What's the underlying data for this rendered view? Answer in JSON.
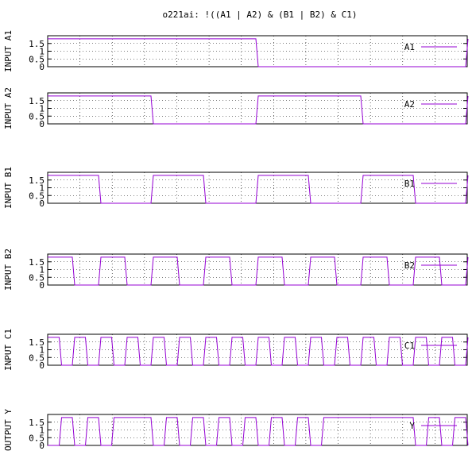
{
  "title": "o221ai: !((A1 | A2) & (B1 | B2) & C1)",
  "colors": {
    "signal": "#9400D3",
    "axis": "#000000",
    "grid": "#000000",
    "background": "#ffffff"
  },
  "chart_data": {
    "type": "line",
    "x": [
      0,
      1,
      2,
      3,
      4,
      5,
      6,
      7,
      8,
      9,
      10,
      11,
      12,
      13,
      14,
      15,
      16,
      17,
      18,
      19,
      20,
      21,
      22,
      23,
      24,
      25,
      26,
      27,
      28,
      29,
      30,
      31,
      32,
      33,
      34,
      35,
      36,
      37,
      38,
      39,
      40,
      41,
      42,
      43,
      44,
      45,
      46,
      47,
      48,
      49,
      50,
      51,
      52,
      53,
      54,
      55,
      56,
      57,
      58,
      59,
      60,
      61,
      62,
      63,
      64
    ],
    "xlim": [
      0,
      64
    ],
    "ylim": [
      0,
      2
    ],
    "yticks": [
      "0",
      "0.5",
      "1",
      "1.5"
    ],
    "grid": true,
    "legend_position": "top-right",
    "panels": [
      {
        "ylabel": "INPUT A1",
        "series": [
          {
            "name": "A1",
            "values": [
              1.8,
              1.8,
              1.8,
              1.8,
              1.8,
              1.8,
              1.8,
              1.8,
              1.8,
              1.8,
              1.8,
              1.8,
              1.8,
              1.8,
              1.8,
              1.8,
              1.8,
              1.8,
              1.8,
              1.8,
              1.8,
              1.8,
              1.8,
              1.8,
              1.8,
              1.8,
              1.8,
              1.8,
              1.8,
              1.8,
              1.8,
              1.8,
              0,
              0,
              0,
              0,
              0,
              0,
              0,
              0,
              0,
              0,
              0,
              0,
              0,
              0,
              0,
              0,
              0,
              0,
              0,
              0,
              0,
              0,
              0,
              0,
              0,
              0,
              0,
              0,
              0,
              0,
              0,
              0,
              1.8
            ]
          }
        ]
      },
      {
        "ylabel": "INPUT A2",
        "series": [
          {
            "name": "A2",
            "values": [
              1.8,
              1.8,
              1.8,
              1.8,
              1.8,
              1.8,
              1.8,
              1.8,
              1.8,
              1.8,
              1.8,
              1.8,
              1.8,
              1.8,
              1.8,
              1.8,
              0,
              0,
              0,
              0,
              0,
              0,
              0,
              0,
              0,
              0,
              0,
              0,
              0,
              0,
              0,
              0,
              1.8,
              1.8,
              1.8,
              1.8,
              1.8,
              1.8,
              1.8,
              1.8,
              1.8,
              1.8,
              1.8,
              1.8,
              1.8,
              1.8,
              1.8,
              1.8,
              0,
              0,
              0,
              0,
              0,
              0,
              0,
              0,
              0,
              0,
              0,
              0,
              0,
              0,
              0,
              0,
              1.8
            ]
          }
        ]
      },
      {
        "ylabel": "INPUT B1",
        "series": [
          {
            "name": "B1",
            "values": [
              1.8,
              1.8,
              1.8,
              1.8,
              1.8,
              1.8,
              1.8,
              1.8,
              0,
              0,
              0,
              0,
              0,
              0,
              0,
              0,
              1.8,
              1.8,
              1.8,
              1.8,
              1.8,
              1.8,
              1.8,
              1.8,
              0,
              0,
              0,
              0,
              0,
              0,
              0,
              0,
              1.8,
              1.8,
              1.8,
              1.8,
              1.8,
              1.8,
              1.8,
              1.8,
              0,
              0,
              0,
              0,
              0,
              0,
              0,
              0,
              1.8,
              1.8,
              1.8,
              1.8,
              1.8,
              1.8,
              1.8,
              1.8,
              0,
              0,
              0,
              0,
              0,
              0,
              0,
              0,
              1.8
            ]
          }
        ]
      },
      {
        "ylabel": "INPUT B2",
        "series": [
          {
            "name": "B2",
            "values": [
              1.8,
              1.8,
              1.8,
              1.8,
              0,
              0,
              0,
              0,
              1.8,
              1.8,
              1.8,
              1.8,
              0,
              0,
              0,
              0,
              1.8,
              1.8,
              1.8,
              1.8,
              0,
              0,
              0,
              0,
              1.8,
              1.8,
              1.8,
              1.8,
              0,
              0,
              0,
              0,
              1.8,
              1.8,
              1.8,
              1.8,
              0,
              0,
              0,
              0,
              1.8,
              1.8,
              1.8,
              1.8,
              0,
              0,
              0,
              0,
              1.8,
              1.8,
              1.8,
              1.8,
              0,
              0,
              0,
              0,
              1.8,
              1.8,
              1.8,
              1.8,
              0,
              0,
              0,
              0,
              1.8
            ]
          }
        ]
      },
      {
        "ylabel": "INPUT C1",
        "series": [
          {
            "name": "C1",
            "values": [
              1.8,
              1.8,
              0,
              0,
              1.8,
              1.8,
              0,
              0,
              1.8,
              1.8,
              0,
              0,
              1.8,
              1.8,
              0,
              0,
              1.8,
              1.8,
              0,
              0,
              1.8,
              1.8,
              0,
              0,
              1.8,
              1.8,
              0,
              0,
              1.8,
              1.8,
              0,
              0,
              1.8,
              1.8,
              0,
              0,
              1.8,
              1.8,
              0,
              0,
              1.8,
              1.8,
              0,
              0,
              1.8,
              1.8,
              0,
              0,
              1.8,
              1.8,
              0,
              0,
              1.8,
              1.8,
              0,
              0,
              1.8,
              1.8,
              0,
              0,
              1.8,
              1.8,
              0,
              0,
              1.8
            ]
          }
        ]
      },
      {
        "ylabel": "OUTPUT Y",
        "series": [
          {
            "name": "Y",
            "values": [
              0,
              0,
              1.8,
              1.8,
              0,
              0,
              1.8,
              1.8,
              0,
              0,
              1.8,
              1.8,
              1.8,
              1.8,
              1.8,
              1.8,
              0,
              0,
              1.8,
              1.8,
              0,
              0,
              1.8,
              1.8,
              0,
              0,
              1.8,
              1.8,
              0,
              0,
              1.8,
              1.8,
              0,
              0,
              1.8,
              1.8,
              0,
              0,
              1.8,
              1.8,
              0,
              0,
              1.8,
              1.8,
              1.8,
              1.8,
              1.8,
              1.8,
              1.8,
              1.8,
              1.8,
              1.8,
              1.8,
              1.8,
              1.8,
              1.8,
              0,
              0,
              1.8,
              1.8,
              0,
              0,
              1.8,
              1.8,
              0
            ]
          }
        ]
      }
    ]
  }
}
